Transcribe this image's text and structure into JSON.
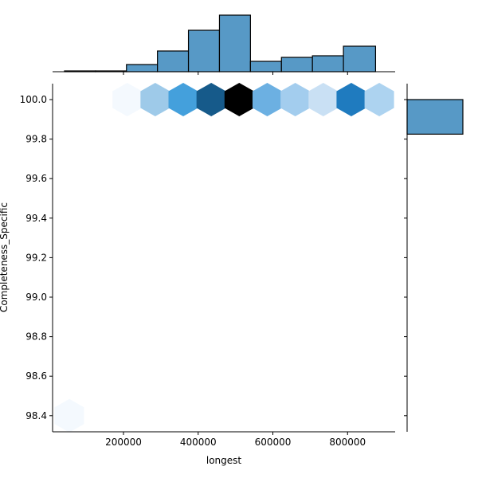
{
  "chart_data": {
    "type": "hexbin",
    "title": "",
    "xlabel": "longest",
    "ylabel": "Completeness_Specific",
    "xlim": [
      15000,
      930000
    ],
    "ylim": [
      98.33,
      100.08
    ],
    "x_ticks": [
      "200000",
      "400000",
      "600000",
      "800000"
    ],
    "y_ticks": [
      "100.0",
      "99.8",
      "99.6",
      "99.4",
      "99.2",
      "99.0",
      "98.8",
      "98.6",
      "98.4"
    ],
    "grid": false,
    "legend": null,
    "hexbins": [
      {
        "x": 55000,
        "y": 98.4,
        "color": "#f4f9fe"
      },
      {
        "x": 210000,
        "y": 100.0,
        "color": "#f4f9fe"
      },
      {
        "x": 285000,
        "y": 100.0,
        "color": "#9ecae9"
      },
      {
        "x": 360000,
        "y": 100.0,
        "color": "#44a0dc"
      },
      {
        "x": 435000,
        "y": 100.0,
        "color": "#165a8a"
      },
      {
        "x": 510000,
        "y": 100.0,
        "color": "#000000"
      },
      {
        "x": 585000,
        "y": 100.0,
        "color": "#6cb0e2"
      },
      {
        "x": 660000,
        "y": 100.0,
        "color": "#a3cdee"
      },
      {
        "x": 735000,
        "y": 100.0,
        "color": "#c9e0f4"
      },
      {
        "x": 810000,
        "y": 100.0,
        "color": "#1f7bbf"
      },
      {
        "x": 885000,
        "y": 100.0,
        "color": "#add3f0"
      }
    ],
    "marginal_x": {
      "type": "histogram",
      "bin_edges": [
        42000,
        125000,
        208000,
        291000,
        374000,
        457000,
        540000,
        623000,
        706000,
        789000,
        875000
      ],
      "relative_heights": [
        1,
        1,
        9,
        26,
        52,
        71,
        13,
        18,
        20,
        32
      ],
      "color": "#5799c6"
    },
    "marginal_y": {
      "type": "histogram",
      "bins": [
        {
          "y_low": 99.825,
          "y_high": 100.0,
          "relative_width": 70
        }
      ],
      "color": "#5799c6"
    }
  }
}
